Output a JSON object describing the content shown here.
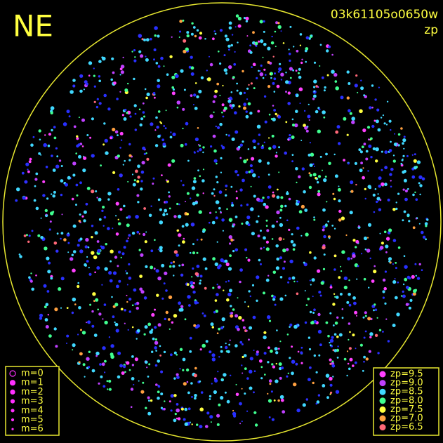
{
  "corner_label": "NE",
  "image_id": "03k61105o0650w",
  "image_mode": "zp",
  "magnitude_legend": [
    "m=0",
    "m=1",
    "m=2",
    "m=3",
    "m=4",
    "m=5",
    "m=6"
  ],
  "zp_legend": [
    {
      "label": "zp=9.5",
      "color": "#ff40ff"
    },
    {
      "label": "zp=9.0",
      "color": "#c040ff"
    },
    {
      "label": "zp=8.5",
      "color": "#40d8ff"
    },
    {
      "label": "zp=8.0",
      "color": "#40ff90"
    },
    {
      "label": "zp=7.5",
      "color": "#ffff40"
    },
    {
      "label": "zp=7.0",
      "color": "#ffa040"
    },
    {
      "label": "zp=6.5",
      "color": "#ff6878"
    }
  ]
}
